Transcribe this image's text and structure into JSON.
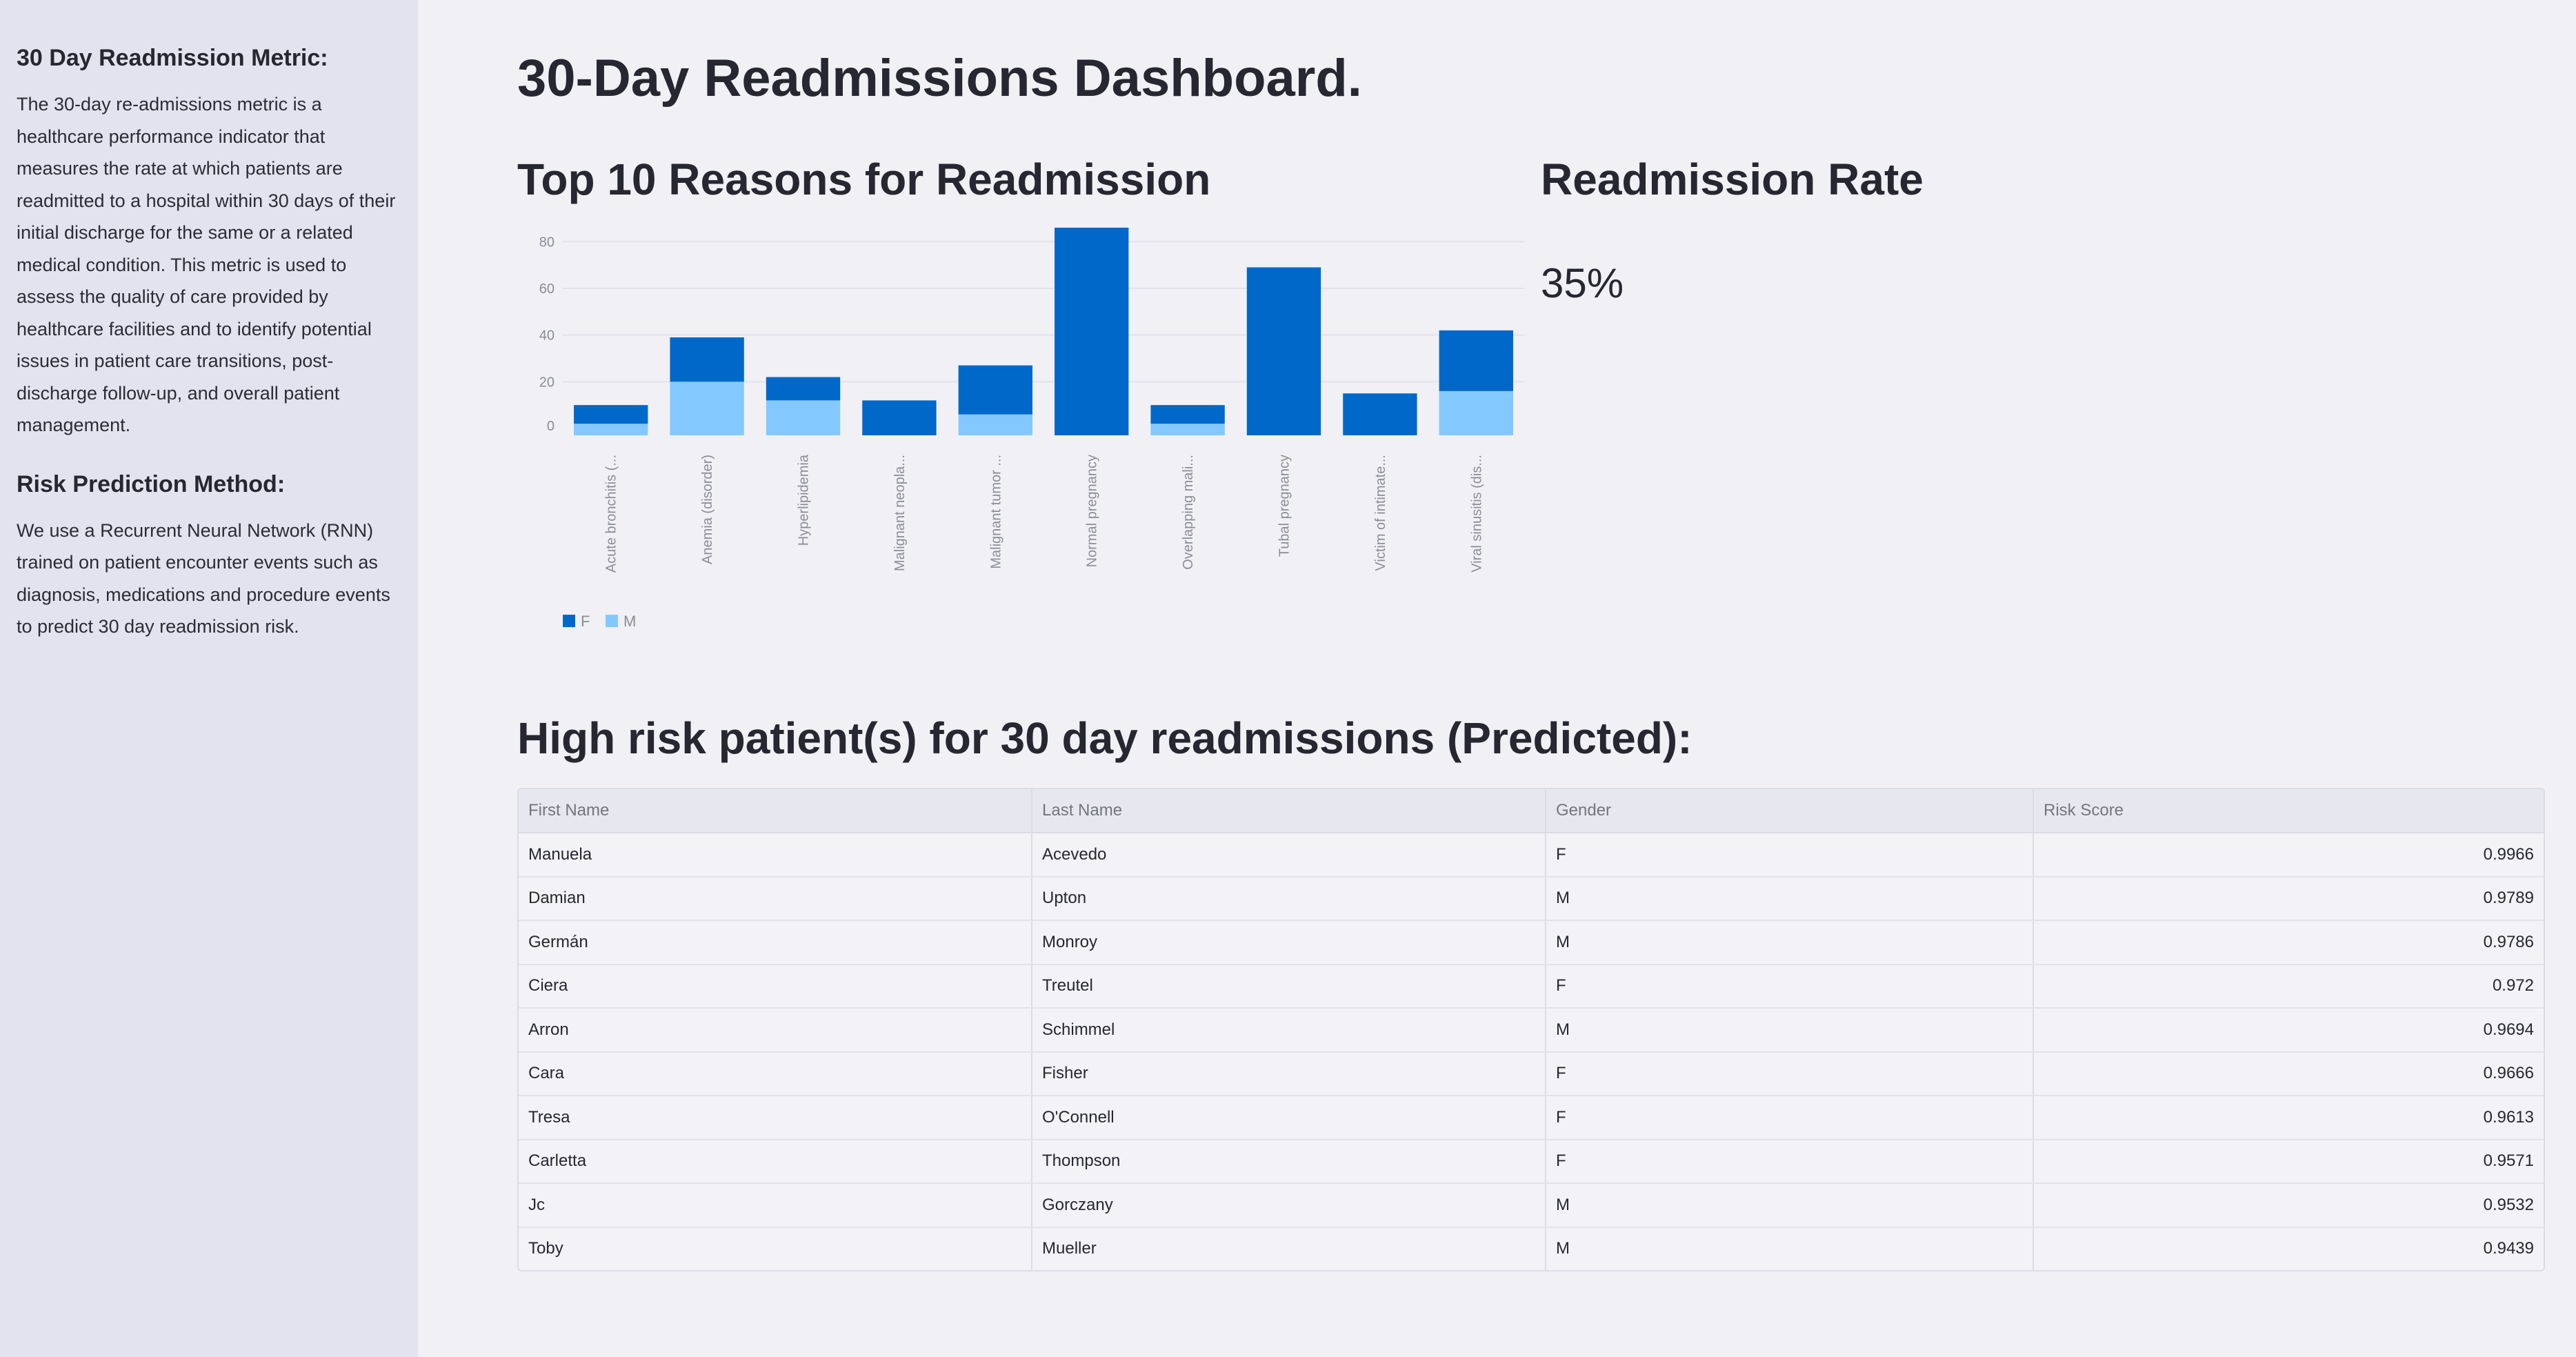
{
  "sidebar": {
    "sections": [
      {
        "heading": "30 Day Readmission Metric:",
        "body": "The 30-day re-admissions metric is a healthcare performance indicator that measures the rate at which patients are readmitted to a hospital within 30 days of their initial discharge for the same or a related medical condition. This metric is used to assess the quality of care provided by healthcare facilities and to identify potential issues in patient care transitions, post-discharge follow-up, and overall patient management."
      },
      {
        "heading": "Risk Prediction Method:",
        "body": "We use a Recurrent Neural Network (RNN) trained on patient encounter events such as diagnosis, medications and procedure events to predict 30 day readmission risk."
      }
    ]
  },
  "header": {
    "title": "30-Day Readmissions Dashboard."
  },
  "chart_section": {
    "title": "Top 10 Reasons for Readmission"
  },
  "rate_section": {
    "title": "Readmission Rate",
    "value": "35%"
  },
  "table_section": {
    "title": "High risk patient(s) for 30 day readmissions (Predicted):",
    "columns": [
      "First Name",
      "Last Name",
      "Gender",
      "Risk Score"
    ],
    "rows": [
      [
        "Manuela",
        "Acevedo",
        "F",
        "0.9966"
      ],
      [
        "Damian",
        "Upton",
        "M",
        "0.9789"
      ],
      [
        "Germán",
        "Monroy",
        "M",
        "0.9786"
      ],
      [
        "Ciera",
        "Treutel",
        "F",
        "0.972"
      ],
      [
        "Arron",
        "Schimmel",
        "M",
        "0.9694"
      ],
      [
        "Cara",
        "Fisher",
        "F",
        "0.9666"
      ],
      [
        "Tresa",
        "O'Connell",
        "F",
        "0.9613"
      ],
      [
        "Carletta",
        "Thompson",
        "F",
        "0.9571"
      ],
      [
        "Jc",
        "Gorczany",
        "M",
        "0.9532"
      ],
      [
        "Toby",
        "Mueller",
        "M",
        "0.9439"
      ]
    ]
  },
  "chart_data": {
    "type": "bar",
    "stacked": true,
    "categories": [
      "Acute bronchitis (...",
      "Anemia (disorder)",
      "Hyperlipidemia",
      "Malignant neopla...",
      "Malignant tumor ...",
      "Normal pregnancy",
      "Overlapping mali...",
      "Tubal pregnancy",
      "Victim of intimate...",
      "Viral sinusitis (dis..."
    ],
    "series": [
      {
        "name": "M",
        "color": "#83c9ff",
        "values": [
          2,
          20,
          12,
          0,
          6,
          0,
          2,
          0,
          0,
          16
        ]
      },
      {
        "name": "F",
        "color": "#0068c9",
        "values": [
          8,
          19,
          10,
          12,
          21,
          86,
          8,
          69,
          15,
          26
        ]
      }
    ],
    "legend": [
      "F",
      "M"
    ],
    "y_ticks": [
      0,
      20,
      40,
      60,
      80
    ],
    "ylim": [
      0,
      86
    ],
    "grid": true,
    "legend_placement": "bottom-left"
  }
}
